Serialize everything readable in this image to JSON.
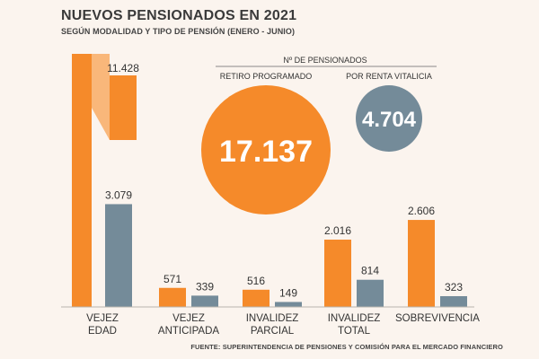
{
  "title": "NUEVOS PENSIONADOS EN 2021",
  "subtitle": "SEGÚN MODALIDAD Y TIPO DE PENSIÓN (ENERO - JUNIO)",
  "legend_header": "Nº DE PENSIONADOS",
  "source": "FUENTE: SUPERINTENDENCIA DE PENSIONES Y COMISIÓN PARA EL MERCADO FINANCIERO",
  "colors": {
    "orange": "#f58a2a",
    "gray": "#748b99",
    "orange_light": "#f9b77a",
    "axis": "#b9b4ae"
  },
  "totals": [
    {
      "label": "RETIRO PROGRAMADO",
      "value": "17.137",
      "color": "#f58a2a"
    },
    {
      "label": "POR RENTA VITALICIA",
      "value": "4.704",
      "color": "#748b99"
    }
  ],
  "chart_data": {
    "type": "bar",
    "categories": [
      [
        "VEJEZ",
        "EDAD"
      ],
      [
        "VEJEZ",
        "ANTICIPADA"
      ],
      [
        "INVALIDEZ",
        "PARCIAL"
      ],
      [
        "INVALIDEZ",
        "TOTAL"
      ],
      [
        "SOBREVIVENCIA"
      ]
    ],
    "series": [
      {
        "values": [
          11428,
          571,
          516,
          2016,
          2606
        ],
        "labels": [
          "11.428",
          "571",
          "516",
          "2.016",
          "2.606"
        ],
        "color": "#f58a2a"
      },
      {
        "values": [
          3079,
          339,
          149,
          814,
          323
        ],
        "labels": [
          "3.079",
          "339",
          "149",
          "814",
          "323"
        ],
        "color": "#748b99"
      }
    ],
    "axis_break": true
  }
}
